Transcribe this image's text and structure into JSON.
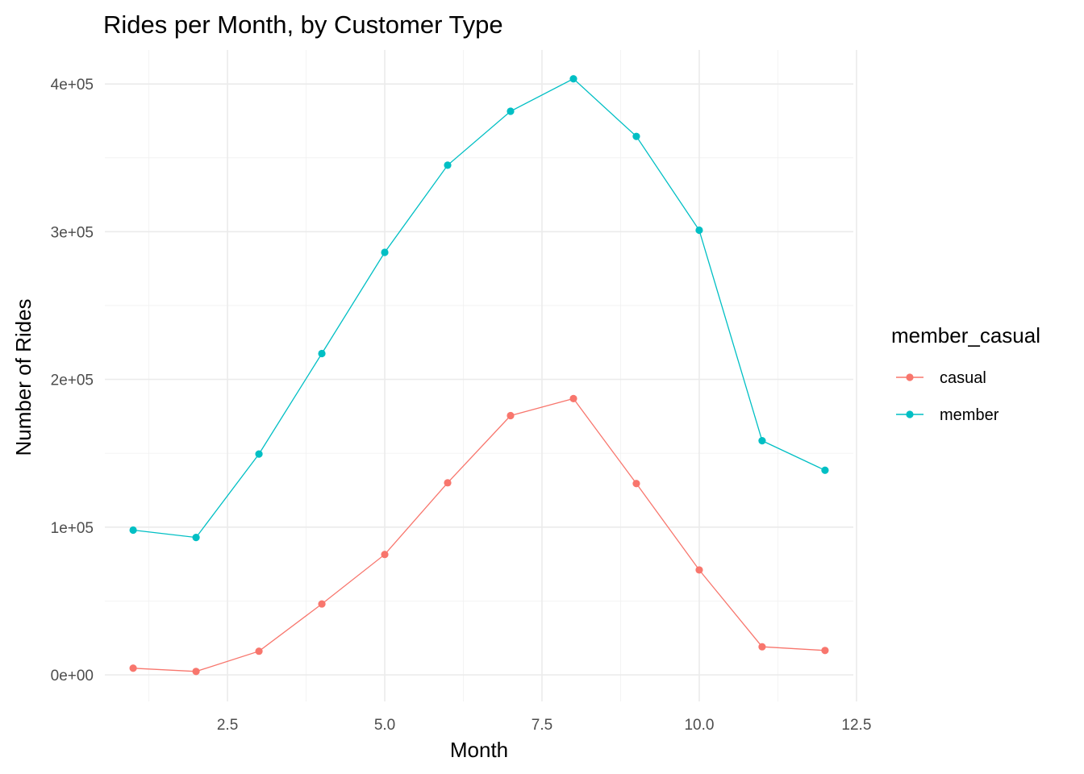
{
  "chart_data": {
    "type": "line",
    "title": "Rides per Month, by Customer Type",
    "xlabel": "Month",
    "ylabel": "Number of Rides",
    "xlim": [
      0.55,
      12.45
    ],
    "ylim": [
      -18000,
      423000
    ],
    "x_ticks": [
      2.5,
      5.0,
      7.5,
      10.0,
      12.5
    ],
    "x_tick_labels": [
      "2.5",
      "5.0",
      "7.5",
      "10.0",
      "12.5"
    ],
    "y_ticks": [
      0,
      100000,
      200000,
      300000,
      400000
    ],
    "y_tick_labels": [
      "0e+00",
      "1e+05",
      "2e+05",
      "3e+05",
      "4e+05"
    ],
    "grid": true,
    "legend": {
      "title": "member_casual",
      "position": "right"
    },
    "x": [
      1,
      2,
      3,
      4,
      5,
      6,
      7,
      8,
      9,
      10,
      11,
      12
    ],
    "series": [
      {
        "name": "casual",
        "color": "#F8766D",
        "values": [
          4500,
          2300,
          16000,
          48000,
          81500,
          130000,
          175500,
          187000,
          129500,
          71000,
          19000,
          16500
        ]
      },
      {
        "name": "member",
        "color": "#00BFC4",
        "values": [
          98000,
          93000,
          149500,
          217500,
          286000,
          345000,
          381500,
          403500,
          364500,
          301000,
          158500,
          138500
        ]
      }
    ]
  }
}
